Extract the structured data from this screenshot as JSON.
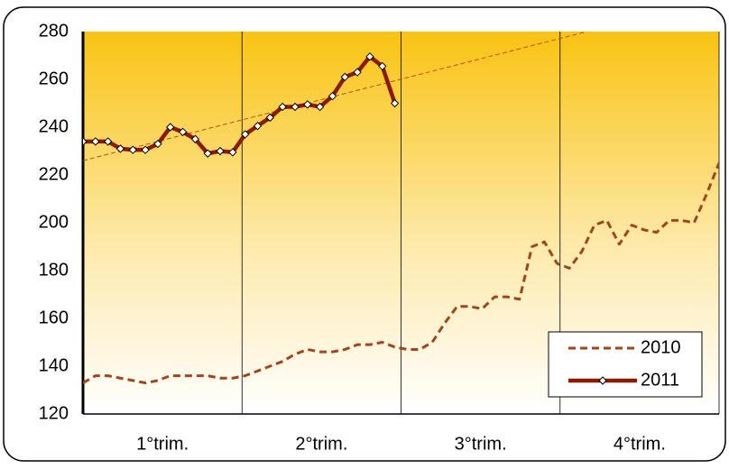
{
  "chart_data": {
    "type": "line",
    "categories": [
      "1°trim.",
      "2°trim.",
      "3°trim.",
      "4°trim."
    ],
    "xlim": [
      0,
      51
    ],
    "ylim": [
      120,
      280
    ],
    "yticks": [
      120,
      140,
      160,
      180,
      200,
      220,
      240,
      260,
      280
    ],
    "grid": true,
    "legend": "lower right",
    "series": [
      {
        "name": "2010",
        "color": "#a0461e",
        "style": "dashed",
        "x": [
          0,
          1,
          2,
          3,
          4,
          5,
          6,
          7,
          8,
          9,
          10,
          11,
          12,
          13,
          14,
          15,
          16,
          17,
          18,
          19,
          20,
          21,
          22,
          23,
          24,
          25,
          26,
          27,
          28,
          29,
          30,
          31,
          32,
          33,
          34,
          35,
          36,
          37,
          38,
          39,
          40,
          41,
          42,
          43,
          44,
          45,
          46,
          47,
          48,
          49,
          50,
          51
        ],
        "values": [
          133,
          136,
          136,
          135,
          134,
          133,
          134,
          136,
          136,
          136,
          136,
          135,
          135,
          136,
          138,
          140,
          142,
          145,
          147,
          146,
          146,
          147,
          149,
          149,
          150,
          148,
          147,
          147,
          150,
          158,
          165,
          165,
          164,
          169,
          169,
          168,
          190,
          192,
          183,
          181,
          188,
          199,
          201,
          191,
          199,
          197,
          196,
          201,
          201,
          200,
          212,
          225
        ]
      },
      {
        "name": "2011",
        "color": "#8b1a00",
        "style": "solid",
        "x": [
          0,
          1,
          2,
          3,
          4,
          5,
          6,
          7,
          8,
          9,
          10,
          11,
          12,
          13,
          14,
          15,
          16,
          17,
          18,
          19,
          20,
          21,
          22,
          23,
          24,
          25
        ],
        "values": [
          234,
          234,
          234,
          231,
          230.5,
          230.5,
          233,
          240,
          238,
          235,
          229,
          230,
          229.5,
          237,
          240.5,
          244,
          248.5,
          248.5,
          249.5,
          248.5,
          253,
          261,
          263,
          269.5,
          265.5,
          250
        ]
      }
    ],
    "trendline": {
      "color": "#b5501e",
      "x": [
        0,
        40.4
      ],
      "values": [
        226,
        280
      ]
    }
  }
}
